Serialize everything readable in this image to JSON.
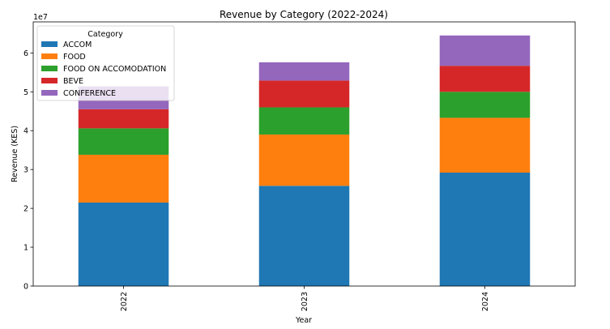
{
  "chart_data": {
    "type": "bar",
    "stacked": true,
    "title": "Revenue by Category (2022-2024)",
    "xlabel": "Year",
    "ylabel": "Revenue (KES)",
    "y_multiplier_label": "1e7",
    "categories": [
      "2022",
      "2023",
      "2024"
    ],
    "ylim": [
      0,
      68000000
    ],
    "yticks": [
      0,
      10000000,
      20000000,
      30000000,
      40000000,
      50000000,
      60000000
    ],
    "ytick_labels": [
      "0",
      "1",
      "2",
      "3",
      "4",
      "5",
      "6"
    ],
    "grid": false,
    "legend": {
      "title": "Category",
      "placement": "top-left"
    },
    "series": [
      {
        "name": "ACCOM",
        "color": "#1f77b4",
        "values": [
          21500000,
          25800000,
          29200000
        ]
      },
      {
        "name": "FOOD",
        "color": "#ff7f0e",
        "values": [
          12300000,
          13200000,
          14100000
        ]
      },
      {
        "name": "FOOD ON ACCOMODATION",
        "color": "#2ca02c",
        "values": [
          6800000,
          7000000,
          6700000
        ]
      },
      {
        "name": "BEVE",
        "color": "#d62728",
        "values": [
          4900000,
          6900000,
          6700000
        ]
      },
      {
        "name": "CONFERENCE",
        "color": "#9467bd",
        "values": [
          5900000,
          4700000,
          7800000
        ]
      }
    ]
  }
}
